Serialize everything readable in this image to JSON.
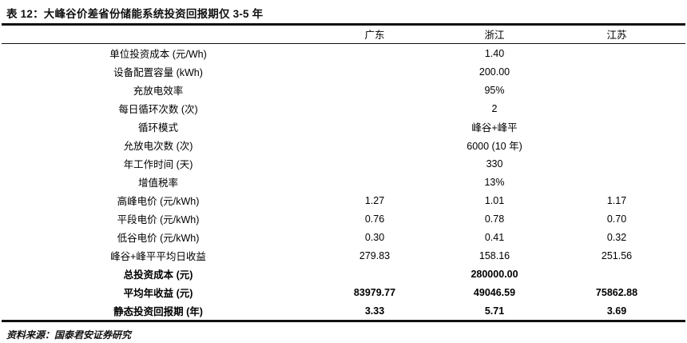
{
  "page": {
    "title": "表 12：大峰谷价差省份储能系统投资回报期仅 3-5 年",
    "source_note": "资料来源：国泰君安证券研究"
  },
  "colors": {
    "background": "#ffffff",
    "text": "#111111",
    "rule": "#111111"
  },
  "table": {
    "columns": [
      "广东",
      "浙江",
      "江苏"
    ],
    "rows": [
      {
        "label": "单位投资成本 (元/Wh)",
        "merged": "1.40",
        "bold": false
      },
      {
        "label": "设备配置容量 (kWh)",
        "merged": "200.00",
        "bold": false
      },
      {
        "label": "充放电效率",
        "merged": "95%",
        "bold": false
      },
      {
        "label": "每日循环次数 (次)",
        "merged": "2",
        "bold": false
      },
      {
        "label": "循环模式",
        "merged": "峰谷+峰平",
        "bold": false
      },
      {
        "label": "允放电次数 (次)",
        "merged": "6000 (10 年)",
        "bold": false
      },
      {
        "label": "年工作时间 (天)",
        "merged": "330",
        "bold": false
      },
      {
        "label": "增值税率",
        "merged": "13%",
        "bold": false
      },
      {
        "label": "高峰电价 (元/kWh)",
        "values": [
          "1.27",
          "1.01",
          "1.17"
        ],
        "bold": false
      },
      {
        "label": "平段电价 (元/kWh)",
        "values": [
          "0.76",
          "0.78",
          "0.70"
        ],
        "bold": false
      },
      {
        "label": "低谷电价 (元/kWh)",
        "values": [
          "0.30",
          "0.41",
          "0.32"
        ],
        "bold": false
      },
      {
        "label": "峰谷+峰平平均日收益",
        "values": [
          "279.83",
          "158.16",
          "251.56"
        ],
        "bold": false
      },
      {
        "label": "总投资成本 (元)",
        "merged": "280000.00",
        "bold": true
      },
      {
        "label": "平均年收益 (元)",
        "values": [
          "83979.77",
          "49046.59",
          "75862.88"
        ],
        "bold": true
      },
      {
        "label": "静态投资回报期 (年)",
        "values": [
          "3.33",
          "5.71",
          "3.69"
        ],
        "bold": true
      }
    ]
  }
}
